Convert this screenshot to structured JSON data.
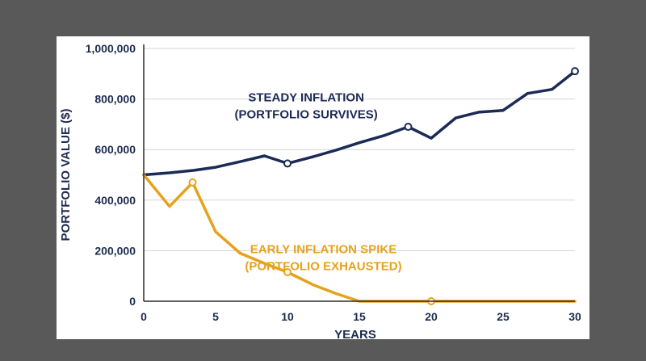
{
  "chart_data": {
    "type": "line",
    "xlabel": "YEARS",
    "ylabel": "PORTFOLIO VALUE ($)",
    "xlim": [
      0,
      30
    ],
    "ylim": [
      0,
      1000000
    ],
    "x_ticks": [
      "0",
      "5",
      "10",
      "15",
      "20",
      "25",
      "30"
    ],
    "y_ticks": [
      "0",
      "200,000",
      "400,000",
      "600,000",
      "800,000",
      "1,000,000"
    ],
    "grid": "horizontal",
    "series": [
      {
        "name": "STEADY INFLATION (PORTFOLIO SURVIVES)",
        "color": "#1c2b55",
        "x": [
          0,
          1.8,
          3.5,
          5,
          6.7,
          8.4,
          10,
          11.8,
          13.4,
          15,
          16.8,
          18.4,
          20,
          21.7,
          23.3,
          25,
          26.7,
          28.4,
          30
        ],
        "y": [
          500000,
          508000,
          518000,
          530000,
          552000,
          575000,
          545000,
          572000,
          598000,
          627000,
          657000,
          690000,
          645000,
          725000,
          748000,
          755000,
          822000,
          838000,
          910000
        ],
        "markers_at": [
          10,
          18.4,
          30
        ]
      },
      {
        "name": "EARLY INFLATION SPIKE (PORTFOLIO EXHAUSTED)",
        "color": "#e6a21c",
        "x": [
          0,
          1.8,
          3.4,
          5,
          6.7,
          8.4,
          10,
          11.8,
          13.4,
          15,
          20,
          25,
          30
        ],
        "y": [
          500000,
          375000,
          470000,
          275000,
          190000,
          150000,
          115000,
          65000,
          30000,
          0,
          0,
          0,
          0
        ],
        "markers_at": [
          3.4,
          10,
          20
        ]
      }
    ],
    "annotations": [
      {
        "lines": [
          "STEADY INFLATION",
          "(PORTFOLIO SURVIVES)"
        ],
        "color": "#1c2b55",
        "x": 11.3,
        "y": 790000
      },
      {
        "lines": [
          "EARLY INFLATION SPIKE",
          "(PORTFOLIO EXHAUSTED)"
        ],
        "color": "#e6a21c",
        "x": 12.5,
        "y": 190000
      }
    ]
  }
}
